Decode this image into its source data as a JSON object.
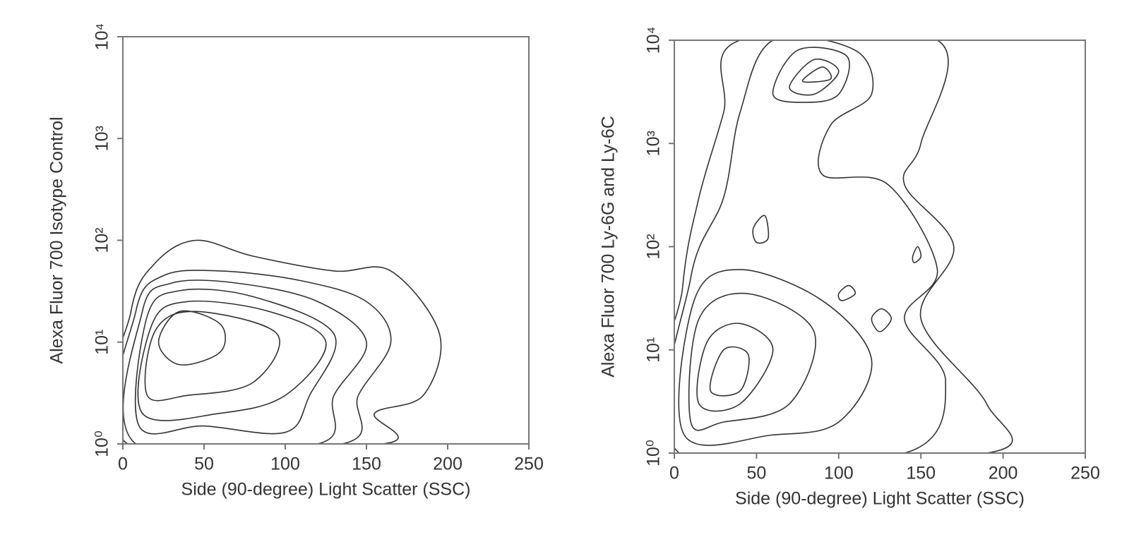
{
  "chart_data": [
    {
      "type": "contour",
      "xlabel": "Side (90-degree) Light Scatter (SSC)",
      "ylabel": "Alexa Fluor 700 Isotype Control",
      "xlim": [
        0,
        250
      ],
      "xticks": [
        0,
        50,
        100,
        150,
        200,
        250
      ],
      "ylim": [
        1,
        10000
      ],
      "yscale": "log",
      "yticks": [
        {
          "value": 1,
          "label": "10⁰"
        },
        {
          "value": 10,
          "label": "10¹"
        },
        {
          "value": 100,
          "label": "10²"
        },
        {
          "value": 1000,
          "label": "10³"
        },
        {
          "value": 10000,
          "label": "10⁴"
        }
      ],
      "color": "#333333",
      "contours": [
        {
          "x": [
            0,
            5,
            20,
            45,
            80,
            130,
            165,
            195,
            185,
            155,
            160
          ],
          "y": [
            1,
            20,
            60,
            100,
            70,
            50,
            50,
            12,
            3,
            2,
            1
          ]
        },
        {
          "x": [
            3,
            8,
            25,
            60,
            110,
            150,
            165,
            145,
            135
          ],
          "y": [
            1,
            20,
            45,
            50,
            40,
            25,
            10,
            3,
            1
          ]
        },
        {
          "x": [
            8,
            12,
            30,
            70,
            120,
            150,
            130,
            120
          ],
          "y": [
            1,
            20,
            38,
            38,
            25,
            10,
            3,
            1
          ]
        },
        {
          "x": [
            10,
            15,
            35,
            80,
            130,
            115,
            100,
            50
          ],
          "y": [
            1.5,
            18,
            32,
            28,
            12,
            3,
            1.3,
            1.5
          ]
        },
        {
          "x": [
            12,
            18,
            40,
            90,
            125,
            100,
            60
          ],
          "y": [
            2,
            15,
            25,
            20,
            10,
            3,
            2
          ]
        },
        {
          "x": [
            15,
            20,
            45,
            95,
            80,
            40
          ],
          "y": [
            3,
            13,
            20,
            12,
            4,
            3
          ]
        },
        {
          "x": [
            22,
            35,
            60,
            60,
            35
          ],
          "y": [
            10,
            20,
            15,
            8,
            6
          ]
        }
      ]
    },
    {
      "type": "contour",
      "xlabel": "Side (90-degree) Light Scatter (SSC)",
      "ylabel": "Alexa Fluor 700 Ly-6G and Ly-6C",
      "xlim": [
        0,
        250
      ],
      "xticks": [
        0,
        50,
        100,
        150,
        200,
        250
      ],
      "ylim": [
        1,
        10000
      ],
      "yscale": "log",
      "yticks": [
        {
          "value": 1,
          "label": "10⁰"
        },
        {
          "value": 10,
          "label": "10¹"
        },
        {
          "value": 100,
          "label": "10²"
        },
        {
          "value": 1000,
          "label": "10³"
        },
        {
          "value": 10000,
          "label": "10⁴"
        }
      ],
      "color": "#333333",
      "contours": [
        {
          "x": [
            0,
            5,
            15,
            30,
            40,
            160,
            150,
            140,
            170,
            150,
            190,
            190
          ],
          "y": [
            1,
            40,
            300,
            2000,
            10000,
            10000,
            1000,
            400,
            100,
            20,
            3,
            1
          ]
        },
        {
          "x": [
            3,
            10,
            30,
            40,
            60,
            110,
            120,
            95,
            90,
            130,
            160,
            140,
            165,
            140
          ],
          "y": [
            1,
            50,
            300,
            2000,
            10000,
            8000,
            3000,
            1500,
            500,
            400,
            60,
            20,
            5,
            1
          ]
        },
        {
          "x": [
            60,
            75,
            105,
            100,
            80
          ],
          "y": [
            3000,
            8000,
            7000,
            3000,
            2500
          ]
        },
        {
          "x": [
            70,
            85,
            100,
            85
          ],
          "y": [
            3500,
            6500,
            5000,
            3000
          ]
        },
        {
          "x": [
            78,
            90,
            95
          ],
          "y": [
            4000,
            5500,
            4200
          ]
        },
        {
          "x": [
            48,
            55,
            57,
            50
          ],
          "y": [
            150,
            200,
            120,
            110
          ]
        },
        {
          "x": [
            145,
            148,
            150,
            146
          ],
          "y": [
            80,
            100,
            80,
            70
          ]
        },
        {
          "x": [
            100,
            106,
            110,
            102
          ],
          "y": [
            35,
            42,
            35,
            30
          ]
        },
        {
          "x": [
            120,
            126,
            132,
            125
          ],
          "y": [
            20,
            25,
            20,
            15
          ]
        },
        {
          "x": [
            6,
            12,
            40,
            90,
            120,
            100,
            60
          ],
          "y": [
            1.5,
            30,
            60,
            30,
            8,
            2,
            1.5
          ]
        },
        {
          "x": [
            10,
            15,
            45,
            85,
            70,
            30
          ],
          "y": [
            2,
            20,
            35,
            15,
            3,
            2
          ]
        },
        {
          "x": [
            15,
            20,
            40,
            60,
            40
          ],
          "y": [
            3,
            12,
            18,
            10,
            3
          ]
        },
        {
          "x": [
            22,
            30,
            45,
            40
          ],
          "y": [
            4,
            10,
            9,
            4
          ]
        }
      ]
    }
  ]
}
